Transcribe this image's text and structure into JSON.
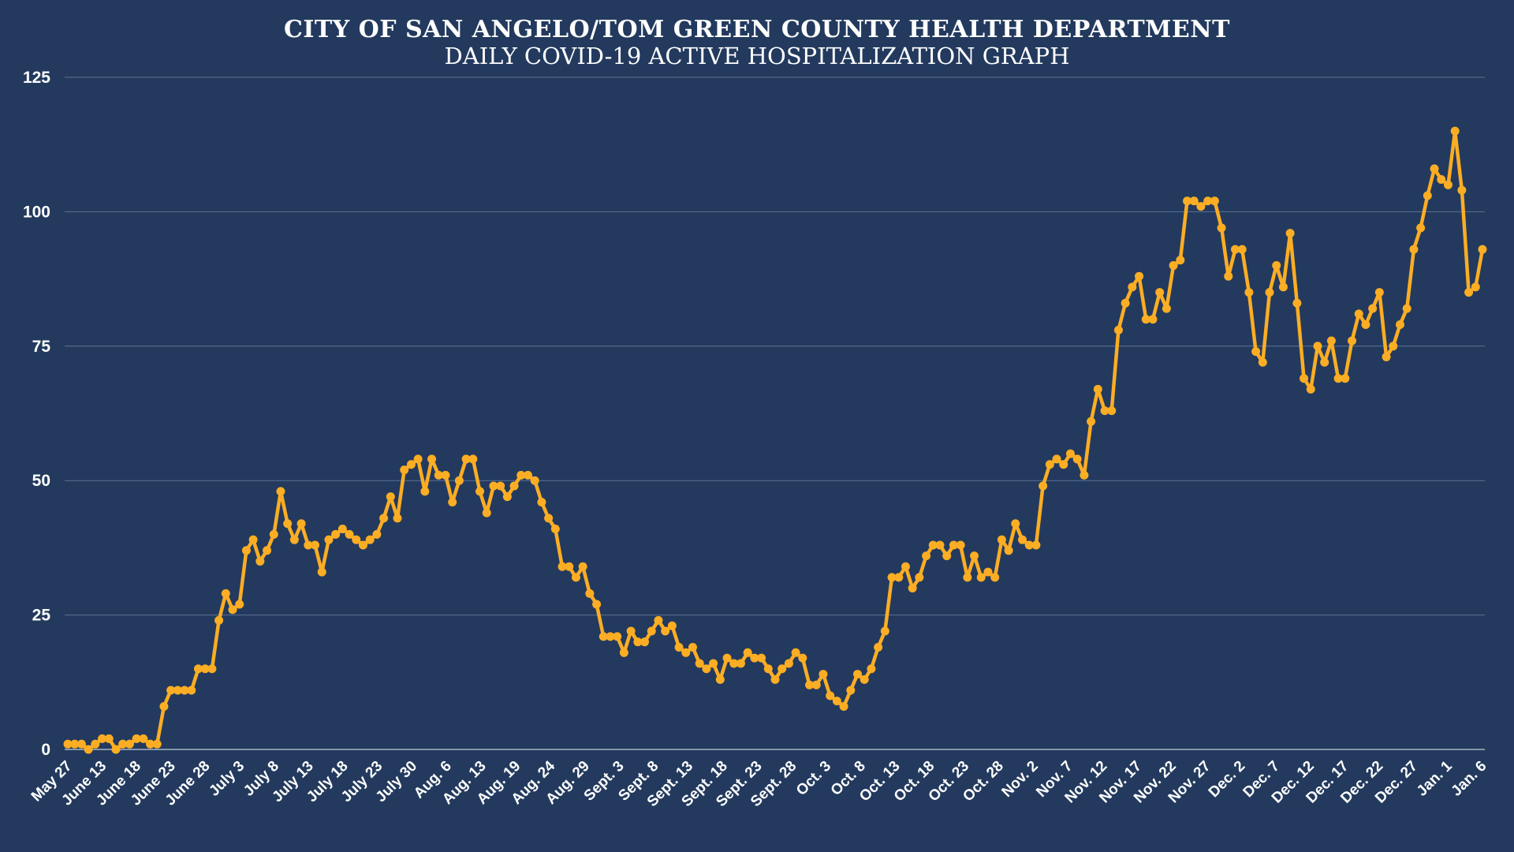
{
  "chart_data": {
    "type": "line",
    "title": "CITY OF SAN ANGELO/TOM GREEN COUNTY HEALTH DEPARTMENT",
    "subtitle": "DAILY COVID-19 ACTIVE HOSPITALIZATION GRAPH",
    "xlabel": "",
    "ylabel": "",
    "ylim": [
      0,
      125
    ],
    "yticks": [
      0,
      25,
      50,
      75,
      100,
      125
    ],
    "grid": true,
    "line_color": "#fbad24",
    "background": "#233a5e",
    "x_tick_labels": [
      "May 27",
      "June 13",
      "June 18",
      "June 23",
      "June 28",
      "July 3",
      "July 8",
      "July 13",
      "July 18",
      "July 23",
      "July 30",
      "Aug. 6",
      "Aug. 13",
      "Aug. 19",
      "Aug. 24",
      "Aug. 29",
      "Sept. 3",
      "Sept. 8",
      "Sept. 13",
      "Sept. 18",
      "Sept. 23",
      "Sept. 28",
      "Oct. 3",
      "Oct. 8",
      "Oct. 13",
      "Oct. 18",
      "Oct. 23",
      "Oct. 28",
      "Nov. 2",
      "Nov. 7",
      "Nov. 12",
      "Nov. 17",
      "Nov. 22",
      "Nov. 27",
      "Dec. 2",
      "Dec. 7",
      "Dec. 12",
      "Dec. 17",
      "Dec. 22",
      "Dec. 27",
      "Jan. 1",
      "Jan. 6"
    ],
    "series": [
      {
        "name": "Active hospitalizations",
        "values": [
          1,
          1,
          1,
          0,
          1,
          2,
          2,
          0,
          1,
          1,
          2,
          2,
          1,
          1,
          8,
          11,
          11,
          11,
          11,
          15,
          15,
          15,
          24,
          29,
          26,
          27,
          37,
          39,
          35,
          37,
          40,
          48,
          42,
          39,
          42,
          38,
          38,
          33,
          39,
          40,
          41,
          40,
          39,
          38,
          39,
          40,
          43,
          47,
          43,
          52,
          53,
          54,
          48,
          54,
          51,
          51,
          46,
          50,
          54,
          54,
          48,
          44,
          49,
          49,
          47,
          49,
          51,
          51,
          50,
          46,
          43,
          41,
          34,
          34,
          32,
          34,
          29,
          27,
          21,
          21,
          21,
          18,
          22,
          20,
          20,
          22,
          24,
          22,
          23,
          19,
          18,
          19,
          16,
          15,
          16,
          13,
          17,
          16,
          16,
          18,
          17,
          17,
          15,
          13,
          15,
          16,
          18,
          17,
          12,
          12,
          14,
          10,
          9,
          8,
          11,
          14,
          13,
          15,
          19,
          22,
          32,
          32,
          34,
          30,
          32,
          36,
          38,
          38,
          36,
          38,
          38,
          32,
          36,
          32,
          33,
          32,
          39,
          37,
          42,
          39,
          38,
          38,
          49,
          53,
          54,
          53,
          55,
          54,
          51,
          61,
          67,
          63,
          63,
          78,
          83,
          86,
          88,
          80,
          80,
          85,
          82,
          90,
          91,
          102,
          102,
          101,
          102,
          102,
          97,
          88,
          93,
          93,
          85,
          74,
          72,
          85,
          90,
          86,
          96,
          83,
          69,
          67,
          75,
          72,
          76,
          69,
          69,
          76,
          81,
          79,
          82,
          85,
          73,
          75,
          79,
          82,
          93,
          97,
          103,
          108,
          106,
          105,
          115,
          104,
          85,
          86,
          93
        ]
      }
    ]
  }
}
